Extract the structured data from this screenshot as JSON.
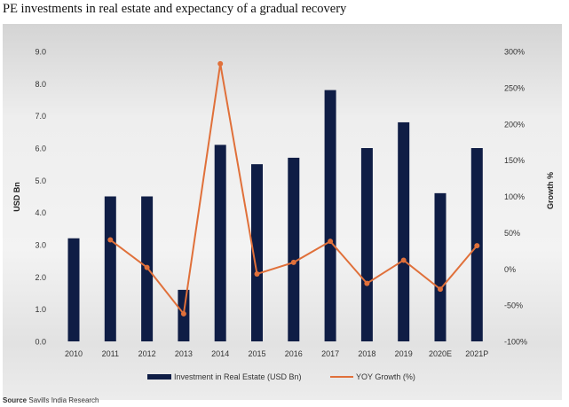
{
  "title": "PE investments in real estate and expectancy of  a gradual recovery",
  "source_label": "Source",
  "source_text": "Savills India Research",
  "colors": {
    "bar": "#0f1d45",
    "line": "#e0703a"
  },
  "chart_data": {
    "type": "bar+line",
    "categories": [
      "2010",
      "2011",
      "2012",
      "2013",
      "2014",
      "2015",
      "2016",
      "2017",
      "2018",
      "2019",
      "2020E",
      "2021P"
    ],
    "series": [
      {
        "name": "Investment in Real Estate (USD Bn)",
        "type": "bar",
        "axis": "left",
        "values": [
          3.2,
          4.5,
          4.5,
          1.6,
          6.1,
          5.5,
          5.7,
          7.8,
          6.0,
          6.8,
          4.6,
          6.0
        ]
      },
      {
        "name": "YOY Growth (%)",
        "type": "line",
        "axis": "right",
        "values": [
          null,
          40,
          2,
          -62,
          283,
          -7,
          9,
          38,
          -20,
          12,
          -28,
          32
        ]
      }
    ],
    "ylabel": "USD Bn",
    "ylim": [
      0,
      9
    ],
    "yticks": [
      "0.0",
      "1.0",
      "2.0",
      "3.0",
      "4.0",
      "5.0",
      "6.0",
      "7.0",
      "8.0",
      "9.0"
    ],
    "y2label": "Growth %",
    "y2lim": [
      -100,
      300
    ],
    "y2ticks": [
      "-100%",
      "-50%",
      "0%",
      "50%",
      "100%",
      "150%",
      "200%",
      "250%",
      "300%"
    ],
    "legend": "bottom",
    "grid": false
  }
}
